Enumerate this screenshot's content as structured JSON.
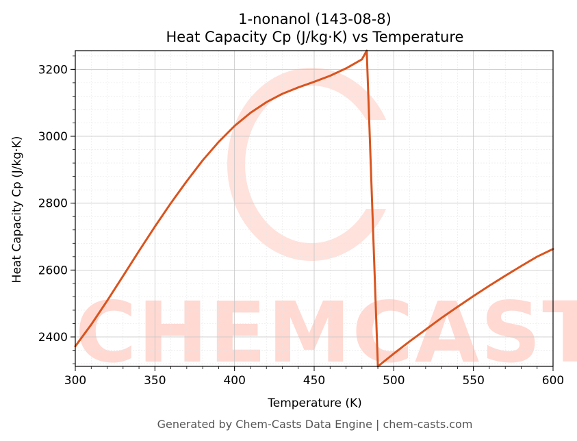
{
  "chart_data": {
    "type": "line",
    "title": "1-nonanol (143-08-8)",
    "subtitle": "Heat Capacity Cp (J/kg·K) vs Temperature",
    "xlabel": "Temperature (K)",
    "ylabel": "Heat Capacity Cp (J/kg·K)",
    "xlim": [
      300,
      600
    ],
    "ylim": [
      2312,
      3256
    ],
    "x_ticks": [
      300,
      350,
      400,
      450,
      500,
      550,
      600
    ],
    "y_ticks": [
      2400,
      2600,
      2800,
      3000,
      3200
    ],
    "grid": true,
    "series": [
      {
        "color": "#d9541e",
        "x": [
          300,
          310,
          320,
          330,
          340,
          350,
          360,
          370,
          380,
          390,
          400,
          410,
          420,
          430,
          440,
          450,
          460,
          470,
          480,
          483,
          490,
          500,
          510,
          520,
          530,
          540,
          550,
          560,
          570,
          580,
          590,
          600
        ],
        "y": [
          2372,
          2437,
          2508,
          2582,
          2657,
          2730,
          2800,
          2866,
          2928,
          2983,
          3031,
          3070,
          3102,
          3127,
          3146,
          3163,
          3181,
          3203,
          3230,
          3256,
          2312,
          2350,
          2387,
          2422,
          2457,
          2490,
          2522,
          2553,
          2583,
          2612,
          2640,
          2663
        ]
      }
    ]
  },
  "watermark": {
    "text": "CHEMCASTS",
    "color": "#ffd9d2"
  },
  "footer": "Generated by Chem-Casts Data Engine | chem-casts.com"
}
